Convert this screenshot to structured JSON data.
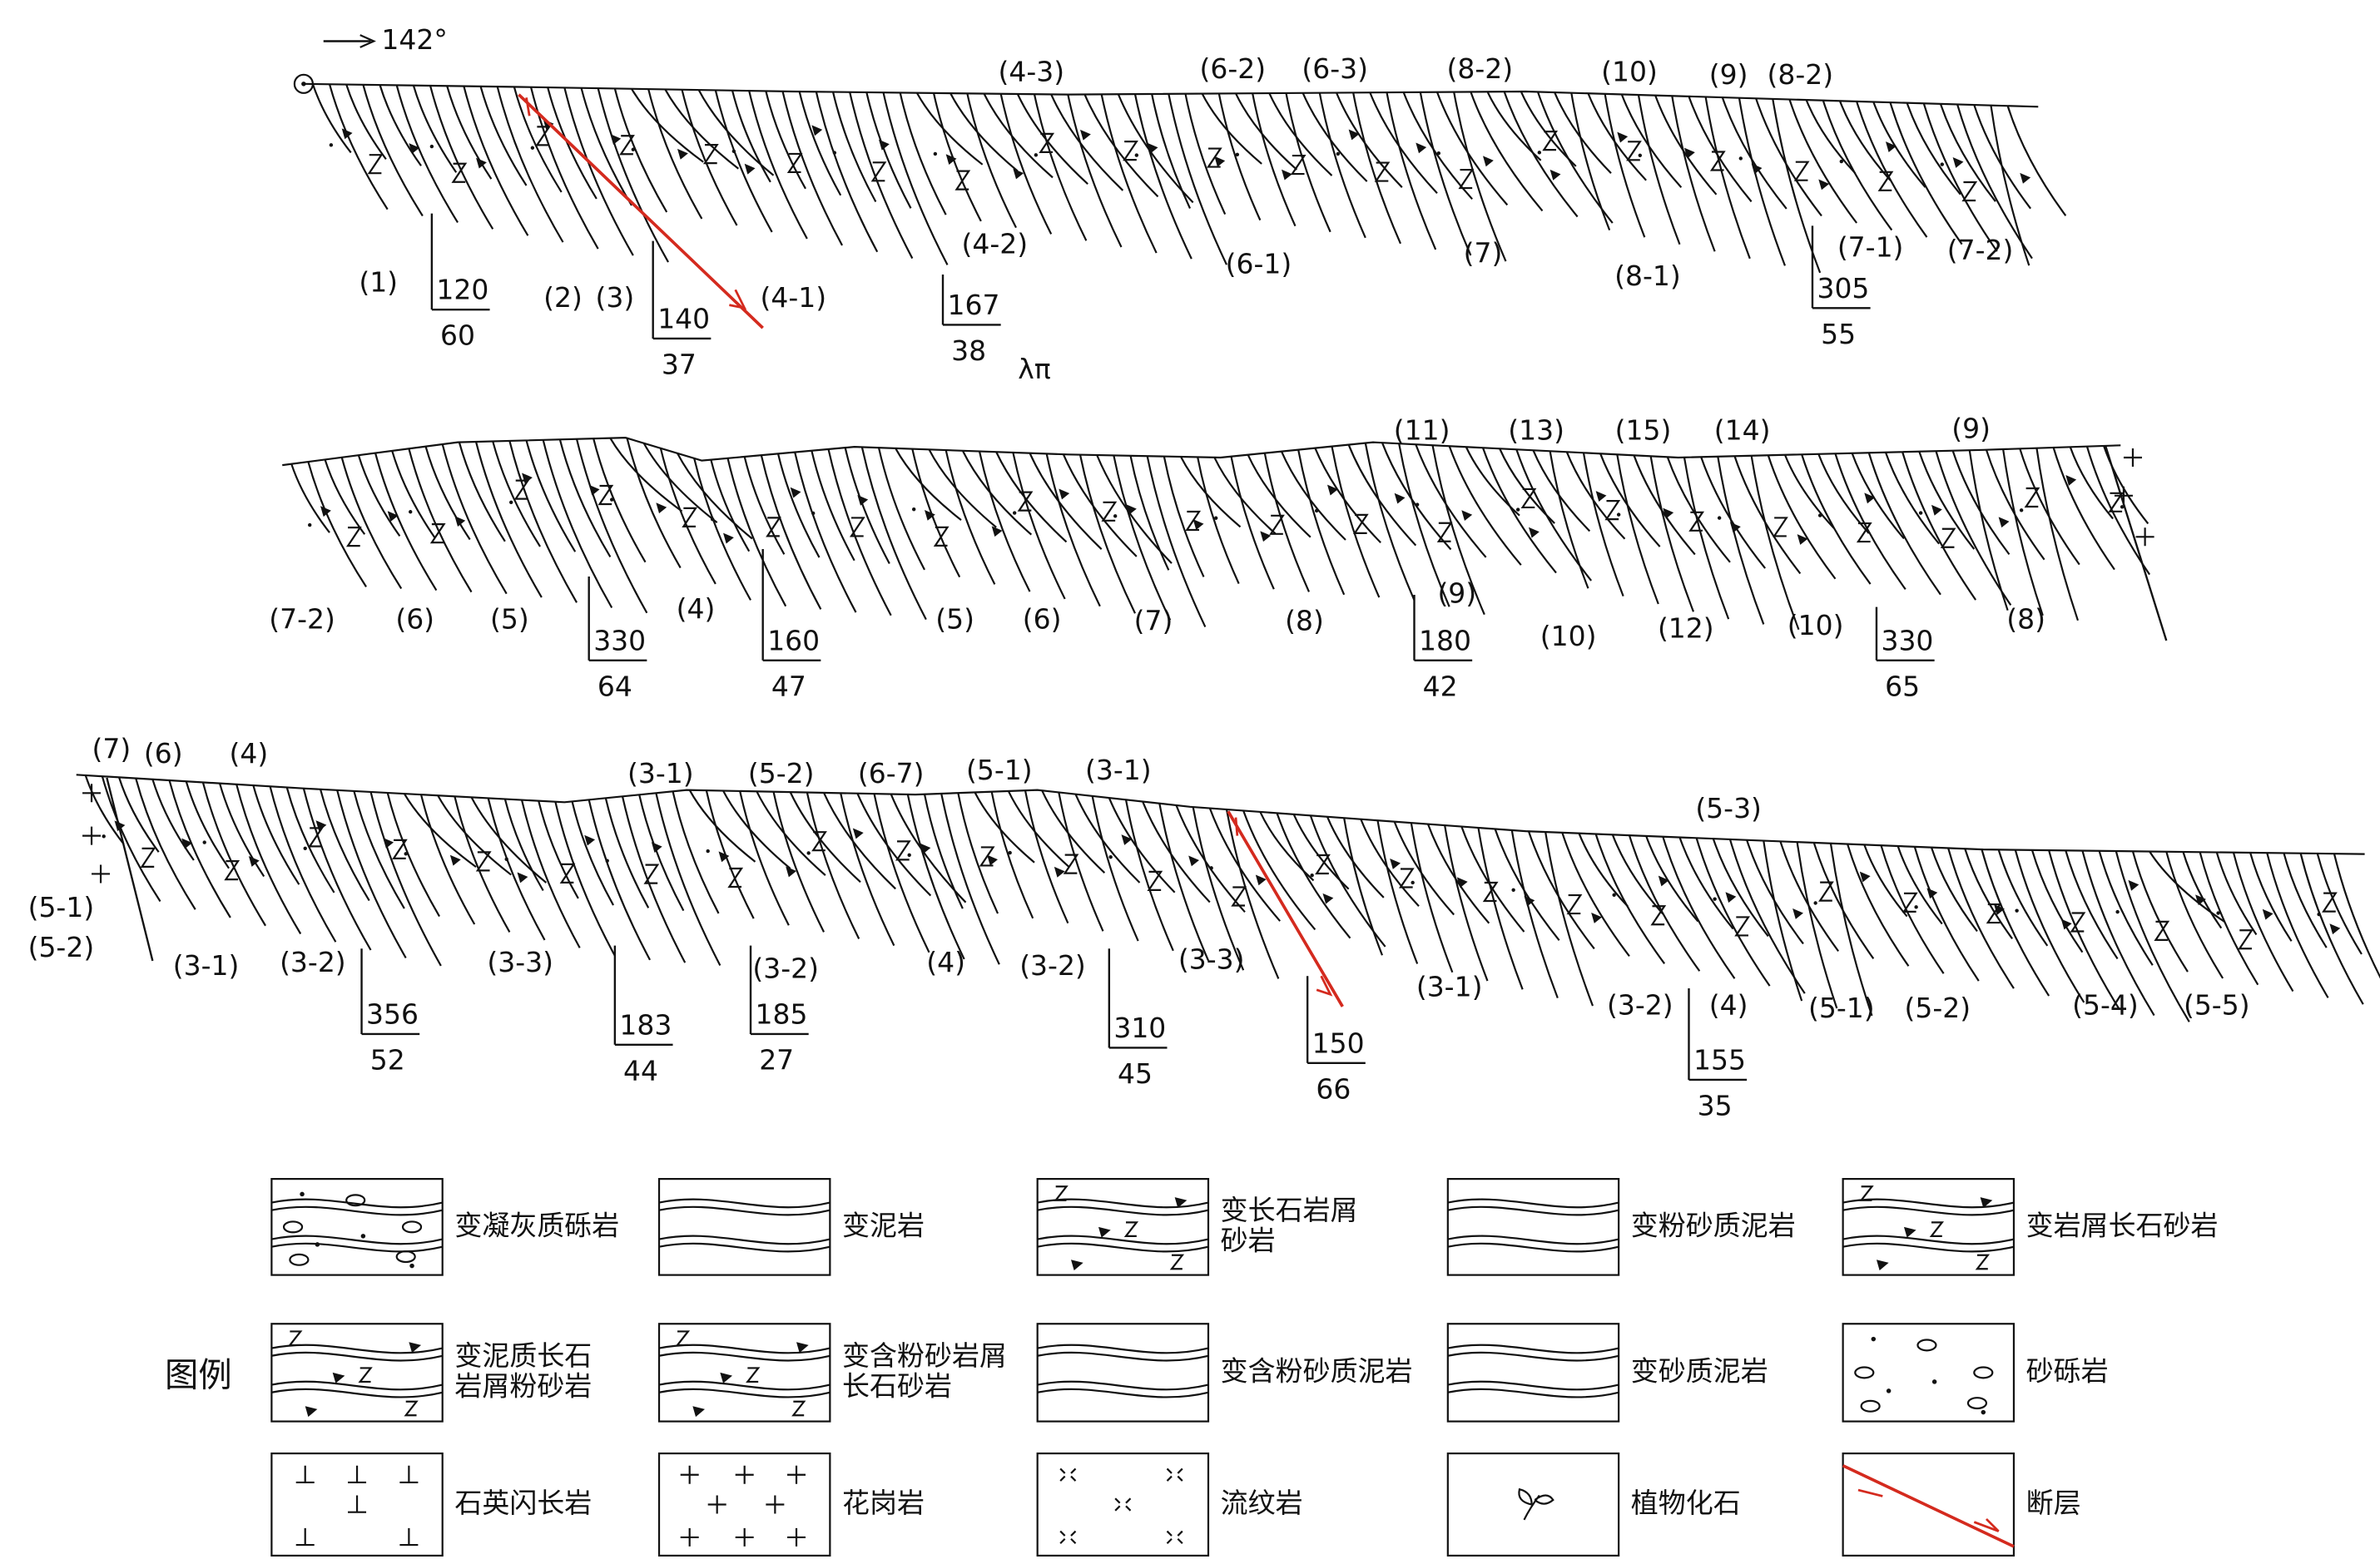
{
  "direction": "142°",
  "rock_symbol": "λπ",
  "profiles": [
    {
      "labels": [
        "(4-3)",
        "(6-2)",
        "(6-3)",
        "(8-2)",
        "(10)",
        "(9)",
        "(8-2)",
        "(1)",
        "(2)",
        "(3)",
        "(4-1)",
        "(4-2)",
        "(6-1)",
        "(7)",
        "(8-1)",
        "(7-1)",
        "(7-2)"
      ],
      "attitudes": [
        {
          "strike": 120,
          "dip": 60
        },
        {
          "strike": 140,
          "dip": 37
        },
        {
          "strike": 167,
          "dip": 38
        },
        {
          "strike": 305,
          "dip": 55
        }
      ]
    },
    {
      "labels": [
        "(11)",
        "(13)",
        "(15)",
        "(14)",
        "(9)",
        "(7-2)",
        "(6)",
        "(5)",
        "(4)",
        "(5)",
        "(6)",
        "(7)",
        "(8)",
        "(9)",
        "(10)",
        "(12)",
        "(10)",
        "(8)"
      ],
      "attitudes": [
        {
          "strike": 330,
          "dip": 64
        },
        {
          "strike": 160,
          "dip": 47
        },
        {
          "strike": 180,
          "dip": 42
        },
        {
          "strike": 330,
          "dip": 65
        }
      ]
    },
    {
      "labels": [
        "(7)",
        "(6)",
        "(4)",
        "(3-1)",
        "(5-2)",
        "(6-7)",
        "(5-1)",
        "(3-1)",
        "(5-3)",
        "(5-1)",
        "(5-2)",
        "(3-1)",
        "(3-2)",
        "(3-3)",
        "(3-2)",
        "(4)",
        "(3-2)",
        "(3-3)",
        "(3-1)",
        "(3-2)",
        "(4)",
        "(5-1)",
        "(5-2)",
        "(5-4)",
        "(5-5)"
      ],
      "attitudes": [
        {
          "strike": 356,
          "dip": 52
        },
        {
          "strike": 183,
          "dip": 44
        },
        {
          "strike": 185,
          "dip": 27
        },
        {
          "strike": 310,
          "dip": 45
        },
        {
          "strike": 150,
          "dip": 66
        },
        {
          "strike": 155,
          "dip": 35
        }
      ]
    }
  ],
  "legend": {
    "title": "图例",
    "items": [
      [
        "变凝灰质砾岩"
      ],
      [
        "变泥岩"
      ],
      [
        "变长石岩屑",
        "砂岩"
      ],
      [
        "变粉砂质泥岩"
      ],
      [
        "变岩屑长石砂岩"
      ],
      [
        "变泥质长石",
        "岩屑粉砂岩"
      ],
      [
        "变含粉砂岩屑",
        "长石砂岩"
      ],
      [
        "变含粉砂质泥岩"
      ],
      [
        "变砂质泥岩"
      ],
      [
        "砂砾岩"
      ],
      [
        "石英闪长岩"
      ],
      [
        "花岗岩"
      ],
      [
        "流纹岩"
      ],
      [
        "植物化石"
      ],
      [
        "断层"
      ]
    ]
  }
}
